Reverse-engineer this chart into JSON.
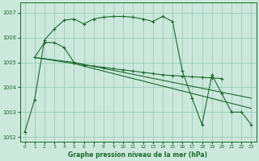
{
  "background_color": "#cce8dd",
  "grid_color": "#99ccbb",
  "line_color": "#1a6b2a",
  "xlabel": "Graphe pression niveau de la mer (hPa)",
  "ylim": [
    1001.8,
    1007.4
  ],
  "yticks": [
    1002,
    1003,
    1004,
    1005,
    1006,
    1007
  ],
  "xlim": [
    -0.5,
    23.5
  ],
  "xticks": [
    0,
    1,
    2,
    3,
    4,
    5,
    6,
    7,
    8,
    9,
    10,
    11,
    12,
    13,
    14,
    15,
    16,
    17,
    18,
    19,
    20,
    21,
    22,
    23
  ],
  "line1_x": [
    0,
    1,
    2,
    3,
    4,
    5,
    6,
    7,
    8,
    9,
    10,
    11,
    12,
    13,
    14,
    15,
    16,
    17,
    18,
    19,
    20,
    21,
    22,
    23
  ],
  "line1_y": [
    1002.2,
    1003.5,
    1005.9,
    1006.35,
    1006.7,
    1006.75,
    1006.55,
    1006.75,
    1006.82,
    1006.85,
    1006.85,
    1006.82,
    1006.75,
    1006.65,
    1006.85,
    1006.65,
    1004.65,
    1003.55,
    1002.5,
    1004.5,
    1003.75,
    1003.0,
    1003.0,
    1002.5
  ],
  "line2_x": [
    1,
    2,
    3,
    4,
    5,
    6,
    7,
    8,
    9,
    10,
    11,
    12,
    13,
    14,
    15,
    16,
    17,
    18,
    19,
    20
  ],
  "line2_y": [
    1005.2,
    1005.8,
    1005.8,
    1005.6,
    1005.0,
    1004.9,
    1004.85,
    1004.8,
    1004.75,
    1004.7,
    1004.65,
    1004.6,
    1004.55,
    1004.5,
    1004.47,
    1004.45,
    1004.42,
    1004.4,
    1004.38,
    1004.35
  ],
  "line3_x": [
    1,
    5,
    6,
    7,
    8,
    9,
    10,
    11,
    12,
    13,
    14,
    15,
    16,
    17,
    18,
    19,
    20,
    21,
    22,
    23
  ],
  "line3_y": [
    1005.2,
    1005.0,
    1004.92,
    1004.84,
    1004.76,
    1004.68,
    1004.6,
    1004.52,
    1004.44,
    1004.36,
    1004.28,
    1004.2,
    1004.12,
    1004.04,
    1003.96,
    1003.88,
    1003.8,
    1003.72,
    1003.64,
    1003.56
  ],
  "line4_x": [
    1,
    5,
    6,
    7,
    8,
    9,
    10,
    11,
    12,
    13,
    14,
    15,
    16,
    17,
    18,
    19,
    20,
    21,
    22,
    23
  ],
  "line4_y": [
    1005.2,
    1004.95,
    1004.85,
    1004.75,
    1004.65,
    1004.55,
    1004.45,
    1004.35,
    1004.25,
    1004.15,
    1004.05,
    1003.95,
    1003.85,
    1003.75,
    1003.65,
    1003.55,
    1003.45,
    1003.35,
    1003.25,
    1003.15
  ]
}
